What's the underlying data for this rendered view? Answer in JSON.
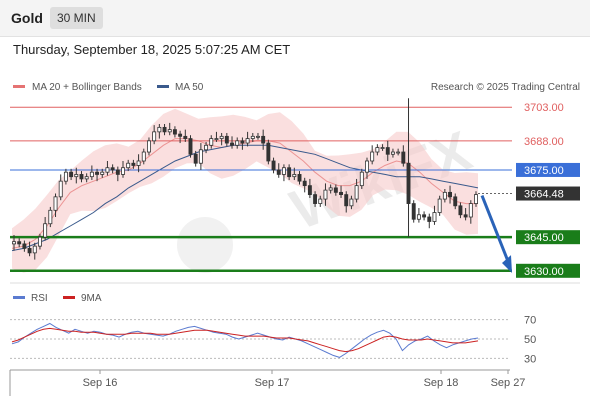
{
  "header": {
    "symbol": "Gold",
    "timeframe": "30 MIN",
    "datetime": "Thursday, September 18, 2025 5:07:25 AM CET"
  },
  "legend": {
    "bollinger_label": "MA 20 + Bollinger Bands",
    "ma50_label": "MA 50",
    "copyright": "Research © 2025 Trading Central",
    "rsi_label": "RSI",
    "rsi_ma_label": "9MA"
  },
  "watermark": {
    "text": "WikiFX"
  },
  "colors": {
    "bollinger": "#e57373",
    "ma50": "#3a5a8c",
    "resistance": "#e06060",
    "pivot": "#3a6fd8",
    "support": "#1a7d1a",
    "last_price": "#333333",
    "candle": "#333333",
    "rsi": "#5b7bd0",
    "rsi_ma": "#cc2222",
    "arrow": "#2a63b8"
  },
  "chart_data": [
    {
      "type": "candlestick",
      "title": "Gold 30 MIN",
      "x_ticks": [
        "Sep 16",
        "Sep 17",
        "Sep 18",
        "Sep 27"
      ],
      "ylim": [
        3625,
        3708
      ],
      "levels": [
        {
          "value": 3703.0,
          "label": "3703.00",
          "kind": "resistance"
        },
        {
          "value": 3688.0,
          "label": "3688.00",
          "kind": "resistance"
        },
        {
          "value": 3675.0,
          "label": "3675.00",
          "kind": "pivot"
        },
        {
          "value": 3664.48,
          "label": "3664.48",
          "kind": "last"
        },
        {
          "value": 3645.0,
          "label": "3645.00",
          "kind": "support"
        },
        {
          "value": 3630.0,
          "label": "3630.00",
          "kind": "support"
        }
      ],
      "close_series": [
        3643,
        3642,
        3640,
        3638,
        3641,
        3645,
        3651,
        3657,
        3663,
        3670,
        3674,
        3672,
        3673,
        3671,
        3672,
        3674,
        3673,
        3674,
        3676,
        3675,
        3673,
        3676,
        3678,
        3677,
        3679,
        3683,
        3688,
        3692,
        3694,
        3692,
        3693,
        3691,
        3690,
        3689,
        3682,
        3678,
        3684,
        3686,
        3689,
        3689,
        3690,
        3687,
        3686,
        3688,
        3687,
        3689,
        3690,
        3690,
        3687,
        3679,
        3675,
        3673,
        3676,
        3672,
        3673,
        3670,
        3668,
        3664,
        3660,
        3662,
        3666,
        3667,
        3665,
        3664,
        3659,
        3662,
        3668,
        3674,
        3679,
        3683,
        3685,
        3685,
        3682,
        3683,
        3683,
        3678,
        3660,
        3653,
        3655,
        3654,
        3652,
        3656,
        3662,
        3665,
        3663,
        3659,
        3655,
        3654,
        3660,
        3664
      ],
      "ma20_series": [
        3640,
        3641,
        3644,
        3650,
        3658,
        3665,
        3668,
        3670,
        3672,
        3674,
        3675,
        3678,
        3682,
        3686,
        3689,
        3689,
        3688,
        3686,
        3685,
        3686,
        3687,
        3688,
        3688,
        3687,
        3683,
        3679,
        3674,
        3670,
        3668,
        3668,
        3670,
        3674,
        3677,
        3679,
        3678,
        3674,
        3669,
        3665,
        3661,
        3660,
        3660
      ],
      "ma50_series": [
        3639,
        3640,
        3642,
        3644,
        3647,
        3650,
        3653,
        3656,
        3660,
        3663,
        3667,
        3670,
        3673,
        3676,
        3679,
        3681,
        3683,
        3684,
        3685,
        3686,
        3686,
        3686,
        3686,
        3685,
        3684,
        3683,
        3682,
        3680,
        3678,
        3676,
        3675,
        3674,
        3673,
        3672,
        3672,
        3672,
        3671,
        3670,
        3669,
        3668,
        3667
      ]
    },
    {
      "type": "line",
      "title": "RSI",
      "ylim": [
        20,
        80
      ],
      "y_ticks": [
        30,
        50,
        70
      ],
      "series": [
        {
          "name": "RSI",
          "values": [
            45,
            47,
            52,
            56,
            60,
            63,
            66,
            62,
            59,
            56,
            60,
            58,
            56,
            58,
            57,
            55,
            54,
            52,
            55,
            57,
            58,
            56,
            55,
            54,
            53,
            55,
            58,
            60,
            62,
            63,
            61,
            59,
            57,
            56,
            55,
            52,
            50,
            52,
            54,
            56,
            54,
            52,
            50,
            49,
            52,
            50,
            48,
            45,
            42,
            39,
            36,
            33,
            31,
            35,
            40,
            45,
            50,
            54,
            57,
            59,
            56,
            50,
            38,
            44,
            48,
            50,
            53,
            48,
            44,
            41,
            44,
            46,
            48,
            50,
            51
          ]
        },
        {
          "name": "9MA",
          "values": [
            47,
            49,
            52,
            55,
            58,
            60,
            61,
            60,
            59,
            58,
            58,
            57,
            57,
            57,
            56,
            55,
            55,
            55,
            55,
            56,
            56,
            56,
            56,
            55,
            55,
            55,
            56,
            57,
            58,
            59,
            59,
            59,
            58,
            57,
            56,
            55,
            54,
            53,
            53,
            53,
            53,
            52,
            51,
            51,
            51,
            50,
            49,
            48,
            46,
            44,
            42,
            40,
            38,
            37,
            38,
            40,
            43,
            46,
            49,
            52,
            53,
            52,
            50,
            49,
            49,
            49,
            50,
            49,
            48,
            47,
            46,
            46,
            46,
            47,
            48
          ]
        }
      ]
    }
  ]
}
